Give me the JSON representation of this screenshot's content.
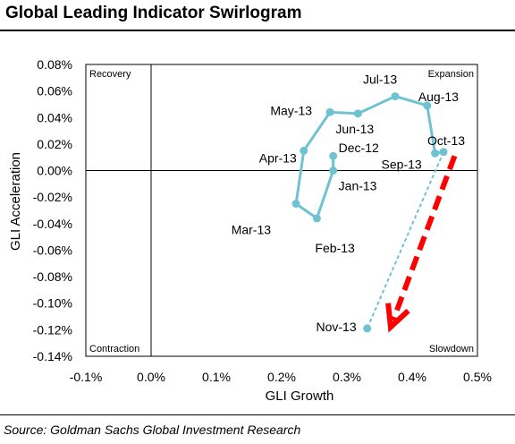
{
  "title": "Global Leading Indicator Swirlogram",
  "source": "Source: Goldman Sachs Global Investment Research",
  "chart_data": {
    "type": "scatter",
    "xlabel": "GLI Growth",
    "ylabel": "GLI Acceleration",
    "xlim": [
      -0.1,
      0.5
    ],
    "ylim": [
      -0.14,
      0.08
    ],
    "x_ticks": [
      "-0.1%",
      "0.0%",
      "0.1%",
      "0.2%",
      "0.3%",
      "0.4%",
      "0.5%"
    ],
    "y_ticks": [
      "0.08%",
      "0.06%",
      "0.04%",
      "0.02%",
      "0.00%",
      "-0.02%",
      "-0.04%",
      "-0.06%",
      "-0.08%",
      "-0.10%",
      "-0.12%",
      "-0.14%"
    ],
    "quadrants": [
      "Recovery",
      "Expansion",
      "Contraction",
      "Slowdown"
    ],
    "series": [
      {
        "color": "#6ec3d3",
        "points": [
          {
            "label": "Dec-12",
            "x": 0.279,
            "y": 0.011
          },
          {
            "label": "Jan-13",
            "x": 0.279,
            "y": 0.0
          },
          {
            "label": "Feb-13",
            "x": 0.254,
            "y": -0.036
          },
          {
            "label": "Mar-13",
            "x": 0.222,
            "y": -0.025
          },
          {
            "label": "Apr-13",
            "x": 0.234,
            "y": 0.015
          },
          {
            "label": "May-13",
            "x": 0.274,
            "y": 0.044
          },
          {
            "label": "Jun-13",
            "x": 0.317,
            "y": 0.043
          },
          {
            "label": "Jul-13",
            "x": 0.374,
            "y": 0.056
          },
          {
            "label": "Aug-13",
            "x": 0.423,
            "y": 0.049
          },
          {
            "label": "Sep-13",
            "x": 0.435,
            "y": 0.013
          },
          {
            "label": "Oct-13",
            "x": 0.448,
            "y": 0.014
          },
          {
            "label": "Nov-13",
            "x": 0.331,
            "y": -0.119
          }
        ],
        "dashed_last_segment": true
      }
    ],
    "annotations": [
      {
        "type": "arrow",
        "style": "dashed",
        "color": "#ff0000",
        "from": [
          0.465,
          0.011
        ],
        "to": [
          0.367,
          -0.118
        ]
      }
    ],
    "grid": false
  }
}
